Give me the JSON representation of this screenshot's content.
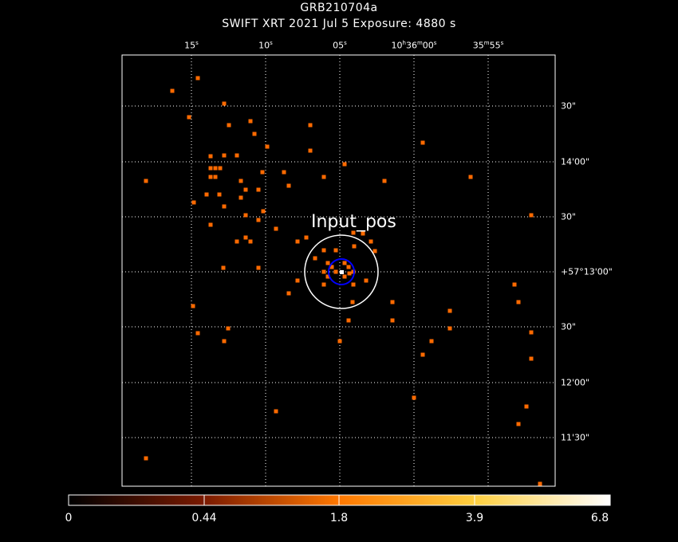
{
  "title": {
    "line1": "GRB210704a",
    "line2": "SWIFT XRT    2021 Jul  5    Exposure: 4880 s"
  },
  "ra_ticks": [
    "15s",
    "10s",
    "05s",
    "10h36m00s",
    "35m55s"
  ],
  "dec_ticks": [
    "30\"",
    "14'00\"",
    "30\"",
    "+57°13'00\"",
    "30\"",
    "12'00\"",
    "11'30\""
  ],
  "marker_label": "Input_pos",
  "colorbar": {
    "labels": [
      "0",
      "0.44",
      "1.8",
      "3.9",
      "6.8"
    ]
  },
  "colors": {
    "pixel": "#ff6a00",
    "circle_inner": "#0000ff",
    "circle_outer": "#ffffff"
  }
}
